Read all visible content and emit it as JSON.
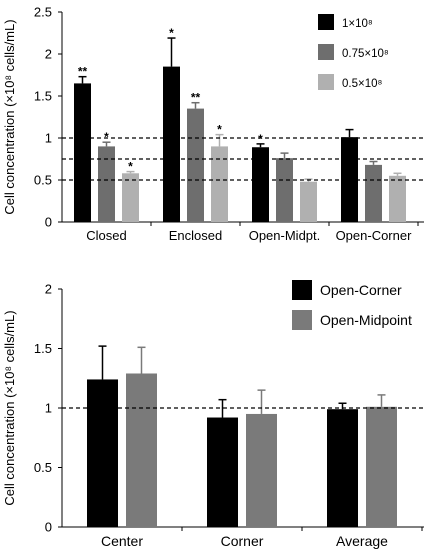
{
  "chart_data": [
    {
      "type": "bar",
      "title": "",
      "ylabel": "Cell concentration (×10⁸ cells/mL)",
      "xlabel": "",
      "ylim": [
        0,
        2.5
      ],
      "yticks": [
        "0",
        "0.5",
        "1",
        "1.5",
        "2",
        "2.5"
      ],
      "ytick_values": [
        0,
        0.5,
        1,
        1.5,
        2,
        2.5
      ],
      "categories": [
        "Closed",
        "Enclosed",
        "Open-Midpt.",
        "Open-Corner"
      ],
      "legend_position": "top-right",
      "reference_lines": [
        1.0,
        0.75,
        0.5
      ],
      "grid": false,
      "series": [
        {
          "name": "1×10⁸",
          "color": "#000000",
          "values": [
            1.65,
            1.85,
            0.89,
            1.01
          ],
          "errors": [
            0.08,
            0.34,
            0.04,
            0.09
          ],
          "annotations": [
            "**",
            "*",
            "*",
            ""
          ]
        },
        {
          "name": "0.75×10⁸",
          "color": "#6e6e6e",
          "values": [
            0.9,
            1.35,
            0.76,
            0.68
          ],
          "errors": [
            0.05,
            0.07,
            0.06,
            0.04
          ],
          "annotations": [
            "*",
            "**",
            "",
            ""
          ]
        },
        {
          "name": "0.5×10⁸",
          "color": "#b0b0b0",
          "values": [
            0.58,
            0.9,
            0.48,
            0.55
          ],
          "errors": [
            0.02,
            0.14,
            0.03,
            0.03
          ],
          "annotations": [
            "*",
            "*",
            "",
            ""
          ]
        }
      ]
    },
    {
      "type": "bar",
      "title": "",
      "ylabel": "Cell concentration (×10⁸ cells/mL)",
      "xlabel": "",
      "ylim": [
        0,
        2
      ],
      "yticks": [
        "0",
        "0.5",
        "1",
        "1.5",
        "2"
      ],
      "ytick_values": [
        0,
        0.5,
        1,
        1.5,
        2
      ],
      "categories": [
        "Center",
        "Corner",
        "Average"
      ],
      "legend_position": "top-right",
      "reference_lines": [
        1.0
      ],
      "grid": false,
      "series": [
        {
          "name": "Open-Corner",
          "color": "#000000",
          "values": [
            1.24,
            0.92,
            0.99
          ],
          "errors": [
            0.28,
            0.15,
            0.05
          ],
          "annotations": [
            "",
            "",
            ""
          ]
        },
        {
          "name": "Open-Midpoint",
          "color": "#7a7a7a",
          "values": [
            1.29,
            0.95,
            1.01
          ],
          "errors": [
            0.22,
            0.2,
            0.1
          ],
          "annotations": [
            "",
            "",
            ""
          ]
        }
      ]
    }
  ]
}
